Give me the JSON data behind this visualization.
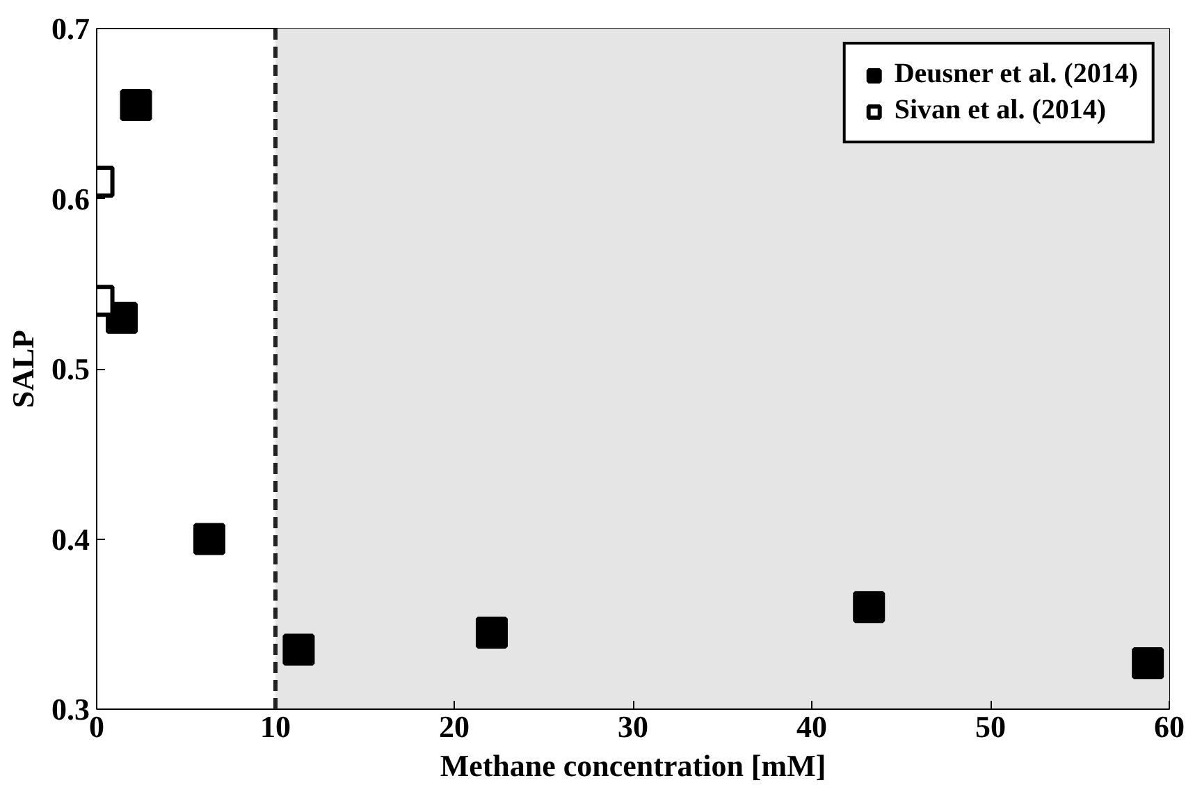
{
  "chart_data": {
    "type": "scatter",
    "xlabel": "Methane concentration [mM]",
    "ylabel": "SALP",
    "xlim": [
      0,
      60
    ],
    "ylim": [
      0.3,
      0.7
    ],
    "xticks": [
      0,
      10,
      20,
      30,
      40,
      50,
      60
    ],
    "yticks": [
      0.3,
      0.4,
      0.5,
      0.6,
      0.7
    ],
    "marker": "square",
    "grid": false,
    "legend": "top right",
    "series": [
      {
        "name": "Deusner et al. (2014)",
        "color": "#000000",
        "x": [
          2.2,
          1.4,
          6.3,
          11.3,
          22.1,
          43.2,
          58.8
        ],
        "values": [
          0.655,
          0.53,
          0.4,
          0.335,
          0.345,
          0.36,
          0.327
        ]
      },
      {
        "name": "Sivan et al. (2014)",
        "color": "#ffffff",
        "x": [
          0.1,
          0.1
        ],
        "values": [
          0.61,
          0.54
        ]
      }
    ],
    "ref_lines": [
      {
        "axis": "x",
        "value": 10,
        "line_style": "dashed",
        "color": "#222222"
      }
    ],
    "bands": [
      {
        "axis": "x",
        "from": 10,
        "to": 60,
        "color": "#e5e5e5"
      }
    ]
  }
}
